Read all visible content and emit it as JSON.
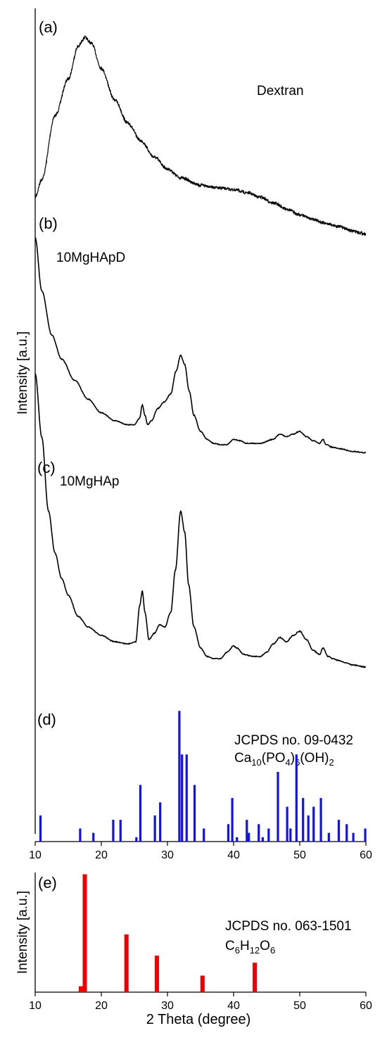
{
  "chart_data": [
    {
      "type": "line",
      "panel": "(a)",
      "label": "Dextran",
      "x": [
        10,
        11,
        13,
        15,
        16.5,
        17.5,
        18.5,
        20,
        22,
        24,
        26,
        28,
        30,
        32,
        35,
        38,
        40,
        42,
        44,
        46,
        48,
        50,
        52,
        54,
        56,
        58,
        60
      ],
      "y": [
        0.2,
        0.32,
        0.75,
        1.0,
        1.22,
        1.28,
        1.24,
        1.07,
        0.86,
        0.7,
        0.58,
        0.47,
        0.39,
        0.33,
        0.28,
        0.26,
        0.25,
        0.23,
        0.2,
        0.16,
        0.12,
        0.08,
        0.05,
        0.02,
        0.0,
        -0.03,
        -0.05
      ],
      "noise": true
    },
    {
      "type": "line",
      "panel": "(b)",
      "label": "10MgHApD",
      "x": [
        10,
        11,
        12.5,
        14,
        16,
        18,
        20,
        22,
        24,
        25,
        25.8,
        26.2,
        26.6,
        27,
        27.6,
        28.5,
        29.5,
        30.5,
        31.3,
        32,
        32.6,
        33.3,
        34,
        35,
        36,
        37,
        38,
        39,
        40,
        41,
        42,
        44,
        46,
        47,
        48,
        49,
        50,
        51,
        52,
        53,
        53.5,
        54,
        55,
        56,
        58,
        60
      ],
      "y": [
        1.55,
        1.15,
        0.82,
        0.64,
        0.48,
        0.34,
        0.24,
        0.18,
        0.15,
        0.15,
        0.2,
        0.3,
        0.22,
        0.15,
        0.18,
        0.27,
        0.32,
        0.38,
        0.55,
        0.67,
        0.6,
        0.4,
        0.22,
        0.1,
        0.04,
        0.01,
        0.0,
        0.0,
        0.04,
        0.03,
        0.01,
        0.01,
        0.04,
        0.08,
        0.06,
        0.08,
        0.1,
        0.06,
        0.03,
        0.01,
        0.04,
        0.0,
        -0.02,
        -0.03,
        -0.05,
        -0.06
      ],
      "noise": false
    },
    {
      "type": "line",
      "panel": "(c)",
      "label": "10MgHAp",
      "x": [
        10,
        11,
        12,
        13,
        14,
        15,
        16.5,
        18,
        20,
        22,
        24,
        25.2,
        25.8,
        26.2,
        26.6,
        27.2,
        28,
        28.8,
        29.6,
        30.5,
        31.2,
        32,
        32.6,
        33.2,
        34,
        35,
        36,
        37,
        38,
        39,
        40,
        40.5,
        41.5,
        43,
        44,
        45,
        46,
        47,
        48,
        49,
        50,
        51,
        52,
        53,
        53.5,
        54.3,
        55,
        56,
        57,
        58,
        60
      ],
      "y": [
        1.35,
        1.05,
        0.7,
        0.5,
        0.38,
        0.3,
        0.2,
        0.15,
        0.11,
        0.08,
        0.07,
        0.08,
        0.25,
        0.32,
        0.22,
        0.09,
        0.12,
        0.16,
        0.15,
        0.22,
        0.42,
        0.7,
        0.6,
        0.35,
        0.15,
        0.05,
        0.01,
        0.0,
        0.0,
        0.03,
        0.06,
        0.05,
        0.02,
        0.01,
        0.01,
        0.03,
        0.07,
        0.1,
        0.08,
        0.11,
        0.13,
        0.09,
        0.04,
        0.02,
        0.05,
        0.01,
        0.0,
        -0.01,
        -0.02,
        -0.03,
        -0.04
      ],
      "noise": false
    },
    {
      "type": "bar",
      "panel": "(d)",
      "label_line1": "JCPDS no. 09-0432",
      "formula": [
        [
          "Ca",
          ""
        ],
        [
          "10",
          "sub"
        ],
        [
          "(PO",
          ""
        ],
        [
          "4",
          "sub"
        ],
        [
          ")",
          ""
        ],
        [
          "6",
          "sub"
        ],
        [
          "(OH)",
          ""
        ],
        [
          "2",
          "sub"
        ]
      ],
      "color": "#1111ee",
      "x": [
        10.8,
        16.8,
        18.8,
        21.8,
        22.9,
        25.3,
        25.9,
        28.1,
        28.9,
        31.8,
        32.2,
        32.9,
        34.1,
        35.5,
        39.2,
        39.8,
        40.5,
        42.0,
        42.3,
        43.8,
        44.4,
        45.3,
        46.7,
        48.1,
        48.6,
        49.5,
        50.5,
        51.3,
        52.1,
        53.2,
        54.4,
        55.9,
        57.1,
        58.1,
        59.9
      ],
      "y": [
        12,
        6,
        4,
        10,
        10,
        2,
        26,
        12,
        18,
        60,
        40,
        40,
        26,
        6,
        8,
        20,
        2,
        10,
        4,
        8,
        2,
        6,
        32,
        16,
        6,
        40,
        20,
        12,
        16,
        20,
        4,
        10,
        8,
        4,
        6
      ],
      "ylim": [
        0,
        63
      ],
      "xticks": [
        10,
        20,
        30,
        40,
        50,
        60
      ]
    },
    {
      "type": "bar",
      "panel": "(e)",
      "label_line1": "JCPDS no. 063-1501",
      "formula": [
        [
          "C",
          ""
        ],
        [
          "6",
          "sub"
        ],
        [
          "H",
          ""
        ],
        [
          "12",
          "sub"
        ],
        [
          "O",
          ""
        ],
        [
          "6",
          "sub"
        ]
      ],
      "color": "#ee0000",
      "x": [
        16.9,
        17.5,
        23.8,
        28.4,
        35.3,
        43.2
      ],
      "y": [
        5,
        100,
        49,
        31,
        14,
        25
      ],
      "ylim": [
        0,
        120
      ],
      "xticks": [
        10,
        20,
        30,
        40,
        50,
        60
      ],
      "xlabel": "2 Theta (degree)",
      "ylabel": "Intensity [a.u.]"
    }
  ],
  "ylabel_main": "Intensity [a.u.]"
}
